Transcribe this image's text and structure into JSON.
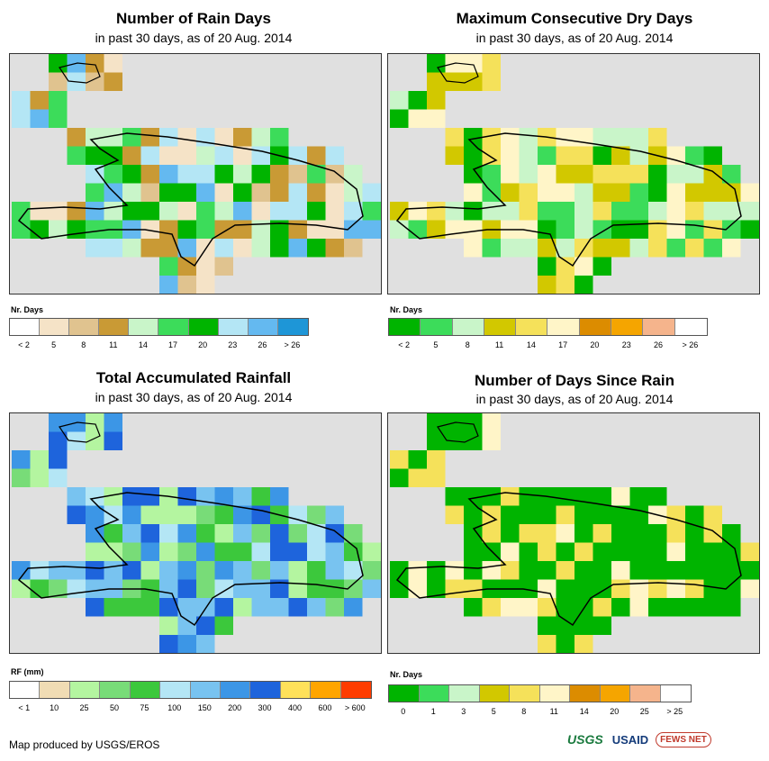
{
  "panels": [
    {
      "title": "Number of Rain Days",
      "subtitle": "in past 30 days, as of 20 Aug. 2014",
      "legend_title": "Nr. Days",
      "legend_colors": [
        "#ffffff",
        "#f5e3c7",
        "#e0c38f",
        "#c99a35",
        "#c9f5c9",
        "#3cdc5a",
        "#00b400",
        "#b4e6f5",
        "#64b9f0",
        "#1e96d7"
      ],
      "legend_labels": [
        "< 2",
        "5",
        "8",
        "11",
        "14",
        "17",
        "20",
        "23",
        "26",
        "> 26"
      ],
      "cell_palette": [
        "#f5e3c7",
        "#e0c38f",
        "#c99a35",
        "#c9f5c9",
        "#3cdc5a",
        "#00b400",
        "#b4e6f5",
        "#64b9f0"
      ],
      "seed": 11
    },
    {
      "title": "Maximum Consecutive Dry Days",
      "subtitle": "in past 30 days, as of 20 Aug. 2014",
      "legend_title": "Nr. Days",
      "legend_colors": [
        "#00b400",
        "#3cdc5a",
        "#c9f5c9",
        "#d2c800",
        "#f5e15a",
        "#fff5c8",
        "#dc8c00",
        "#f5a500",
        "#f5b48c",
        "#ffffff"
      ],
      "legend_labels": [
        "< 2",
        "5",
        "8",
        "11",
        "14",
        "17",
        "20",
        "23",
        "26",
        "> 26"
      ],
      "cell_palette": [
        "#00b400",
        "#3cdc5a",
        "#c9f5c9",
        "#d2c800",
        "#f5e15a",
        "#fff5c8"
      ],
      "seed": 23
    },
    {
      "title": "Total Accumulated Rainfall",
      "subtitle": "in past 30 days, as of 20 Aug. 2014",
      "legend_title": "RF (mm)",
      "legend_colors": [
        "#ffffff",
        "#f0dcb4",
        "#b4f5a0",
        "#78dc78",
        "#3cc83c",
        "#b4e6f5",
        "#78c3f0",
        "#3c96e6",
        "#1e64dc",
        "#ffe15a",
        "#ffa500",
        "#ff3c00"
      ],
      "legend_labels": [
        "< 1",
        "10",
        "25",
        "50",
        "75",
        "100",
        "150",
        "200",
        "300",
        "400",
        "600",
        "> 600"
      ],
      "cell_palette": [
        "#3cc83c",
        "#78dc78",
        "#b4e6f5",
        "#78c3f0",
        "#3c96e6",
        "#1e64dc",
        "#b4f5a0"
      ],
      "seed": 37
    },
    {
      "title": "Number of Days Since Rain",
      "subtitle": "in past 30 days, as of 20 Aug. 2014",
      "legend_title": "Nr. Days",
      "legend_colors": [
        "#00b400",
        "#3cdc5a",
        "#c9f5c9",
        "#d2c800",
        "#f5e15a",
        "#fff5c8",
        "#dc8c00",
        "#f5a500",
        "#f5b48c",
        "#ffffff"
      ],
      "legend_labels": [
        "0",
        "1",
        "3",
        "5",
        "8",
        "11",
        "14",
        "20",
        "25",
        "> 25"
      ],
      "cell_palette": [
        "#00b400",
        "#00b400",
        "#00b400",
        "#00b400",
        "#fff5c8",
        "#f5e15a"
      ],
      "seed": 51
    }
  ],
  "footer": "Map produced by USGS/EROS",
  "logos": {
    "usgs": "USGS",
    "usaid": "USAID",
    "fews": "FEWS NET"
  }
}
